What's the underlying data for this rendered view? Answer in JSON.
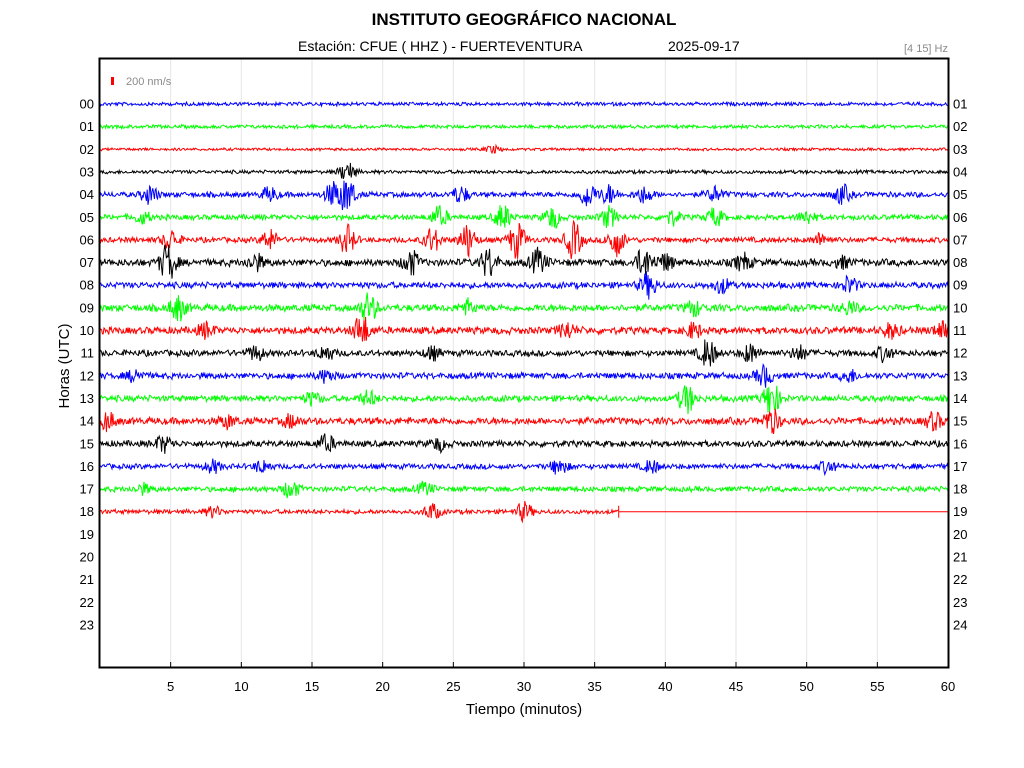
{
  "chart_data": {
    "type": "line",
    "title": "INSTITUTO GEOGRÁFICO NACIONAL",
    "station_label": "Estación:  CFUE ( HHZ ) - FUERTEVENTURA",
    "date": "2025-09-17",
    "filter": "[4 15] Hz",
    "scale_label": "200 nm/s",
    "xlabel": "Tiempo (minutos)",
    "ylabel": "Horas (UTC)",
    "xlim": [
      0,
      60
    ],
    "x_ticks": [
      "5",
      "10",
      "15",
      "20",
      "25",
      "30",
      "35",
      "40",
      "45",
      "50",
      "55",
      "60"
    ],
    "left_hours": [
      "00",
      "01",
      "02",
      "03",
      "04",
      "05",
      "06",
      "07",
      "08",
      "09",
      "10",
      "11",
      "12",
      "13",
      "14",
      "15",
      "16",
      "17",
      "18",
      "19",
      "20",
      "21",
      "22",
      "23"
    ],
    "right_hours": [
      "01",
      "02",
      "03",
      "04",
      "05",
      "06",
      "07",
      "08",
      "09",
      "10",
      "11",
      "12",
      "13",
      "14",
      "15",
      "16",
      "17",
      "18",
      "19",
      "20",
      "21",
      "22",
      "23",
      "24"
    ],
    "grid": "vertical",
    "colors": {
      "blue": "#0000ff",
      "green": "#00ff00",
      "red": "#ff0000",
      "black": "#000000"
    },
    "traces": [
      {
        "hour": "00",
        "color": "#0000ff",
        "amp": 2,
        "end": 60,
        "bursts": []
      },
      {
        "hour": "01",
        "color": "#00ff00",
        "amp": 2,
        "end": 60,
        "bursts": []
      },
      {
        "hour": "02",
        "color": "#ff0000",
        "amp": 1.5,
        "end": 60,
        "bursts": [
          [
            27.8,
            3.5
          ]
        ]
      },
      {
        "hour": "03",
        "color": "#000000",
        "amp": 2,
        "end": 60,
        "bursts": [
          [
            17.5,
            10
          ]
        ]
      },
      {
        "hour": "04",
        "color": "#0000ff",
        "amp": 3,
        "end": 60,
        "bursts": [
          [
            3.5,
            9
          ],
          [
            12,
            7
          ],
          [
            16.5,
            12
          ],
          [
            17.5,
            16
          ],
          [
            25.5,
            8
          ],
          [
            34.5,
            12
          ],
          [
            36,
            9
          ],
          [
            38.5,
            8
          ],
          [
            43.5,
            7
          ],
          [
            52.5,
            9
          ]
        ]
      },
      {
        "hour": "05",
        "color": "#00ff00",
        "amp": 3,
        "end": 60,
        "bursts": [
          [
            3,
            6
          ],
          [
            24,
            10
          ],
          [
            28.5,
            12
          ],
          [
            32,
            11
          ],
          [
            36,
            10
          ],
          [
            40.5,
            7
          ],
          [
            43.5,
            9
          ],
          [
            50,
            7
          ]
        ]
      },
      {
        "hour": "06",
        "color": "#ff0000",
        "amp": 3,
        "end": 60,
        "bursts": [
          [
            5,
            10
          ],
          [
            12,
            10
          ],
          [
            17.5,
            14
          ],
          [
            23.5,
            12
          ],
          [
            26,
            16
          ],
          [
            29.5,
            18
          ],
          [
            33.5,
            18
          ],
          [
            36.5,
            16
          ],
          [
            51,
            6
          ]
        ]
      },
      {
        "hour": "07",
        "color": "#000000",
        "amp": 4,
        "end": 60,
        "bursts": [
          [
            4.8,
            18
          ],
          [
            11,
            8
          ],
          [
            22,
            12
          ],
          [
            27.5,
            14
          ],
          [
            31,
            12
          ],
          [
            38.5,
            14
          ],
          [
            40,
            8
          ],
          [
            45.5,
            8
          ],
          [
            52.5,
            5
          ]
        ]
      },
      {
        "hour": "08",
        "color": "#0000ff",
        "amp": 3.5,
        "end": 60,
        "bursts": [
          [
            38.8,
            12
          ],
          [
            44,
            7
          ],
          [
            53,
            8
          ]
        ]
      },
      {
        "hour": "09",
        "color": "#00ff00",
        "amp": 4,
        "end": 60,
        "bursts": [
          [
            5.5,
            12
          ],
          [
            19,
            14
          ],
          [
            26,
            7
          ],
          [
            42,
            7
          ],
          [
            53,
            6
          ]
        ]
      },
      {
        "hour": "10",
        "color": "#ff0000",
        "amp": 4,
        "end": 60,
        "bursts": [
          [
            7.5,
            7
          ],
          [
            18.5,
            15
          ],
          [
            33,
            8
          ],
          [
            42,
            7
          ],
          [
            56,
            7
          ],
          [
            59.5,
            8
          ]
        ]
      },
      {
        "hour": "11",
        "color": "#000000",
        "amp": 3.5,
        "end": 60,
        "bursts": [
          [
            11,
            7
          ],
          [
            16,
            7
          ],
          [
            23.5,
            6
          ],
          [
            43,
            14
          ],
          [
            46,
            9
          ],
          [
            49.5,
            7
          ],
          [
            55.5,
            7
          ]
        ]
      },
      {
        "hour": "12",
        "color": "#0000ff",
        "amp": 3.5,
        "end": 60,
        "bursts": [
          [
            2.5,
            6
          ],
          [
            16,
            6
          ],
          [
            47,
            10
          ],
          [
            53,
            6
          ]
        ]
      },
      {
        "hour": "13",
        "color": "#00ff00",
        "amp": 3.5,
        "end": 60,
        "bursts": [
          [
            15,
            6
          ],
          [
            19,
            7
          ],
          [
            41.5,
            14
          ],
          [
            47.5,
            17
          ]
        ]
      },
      {
        "hour": "14",
        "color": "#ff0000",
        "amp": 4,
        "end": 60,
        "bursts": [
          [
            0.5,
            9
          ],
          [
            9,
            6
          ],
          [
            13.5,
            6
          ],
          [
            47.5,
            12
          ],
          [
            59,
            8
          ]
        ]
      },
      {
        "hour": "15",
        "color": "#000000",
        "amp": 3.5,
        "end": 60,
        "bursts": [
          [
            4.5,
            8
          ],
          [
            16,
            8
          ],
          [
            24,
            6
          ]
        ]
      },
      {
        "hour": "16",
        "color": "#0000ff",
        "amp": 3,
        "end": 60,
        "bursts": [
          [
            8,
            6
          ],
          [
            11.5,
            6
          ],
          [
            32.5,
            8
          ],
          [
            39,
            6
          ],
          [
            51.5,
            6
          ]
        ]
      },
      {
        "hour": "17",
        "color": "#00ff00",
        "amp": 3,
        "end": 60,
        "bursts": [
          [
            3,
            5
          ],
          [
            13.5,
            9
          ],
          [
            23,
            6
          ]
        ]
      },
      {
        "hour": "18",
        "color": "#ff0000",
        "amp": 2.5,
        "end": 36.7,
        "bursts": [
          [
            8,
            5
          ],
          [
            23.5,
            8
          ],
          [
            30,
            9
          ]
        ]
      }
    ]
  }
}
